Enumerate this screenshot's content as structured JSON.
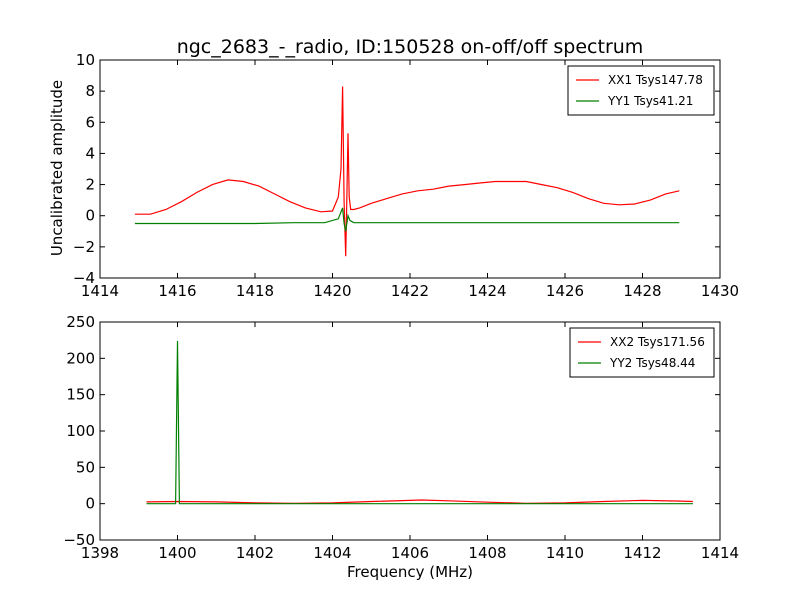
{
  "title": "ngc_2683_-_radio, ID:150528 on-off/off spectrum",
  "chart_data": [
    {
      "type": "line",
      "xlabel": "",
      "ylabel": "Uncalibrated amplitude",
      "xlim": [
        1414,
        1430
      ],
      "ylim": [
        -4,
        10
      ],
      "xticks": [
        "1414",
        "1416",
        "1418",
        "1420",
        "1422",
        "1424",
        "1426",
        "1428",
        "1430"
      ],
      "yticks": [
        "−4",
        "−2",
        "0",
        "2",
        "4",
        "6",
        "8",
        "10"
      ],
      "legend_position": "top-right",
      "series": [
        {
          "name": "XX1 Tsys147.78",
          "color": "#ff0000",
          "x": [
            1414.9,
            1415.3,
            1415.7,
            1416.1,
            1416.5,
            1416.9,
            1417.3,
            1417.7,
            1418.1,
            1418.5,
            1418.9,
            1419.3,
            1419.7,
            1420.0,
            1420.15,
            1420.22,
            1420.26,
            1420.3,
            1420.34,
            1420.37,
            1420.4,
            1420.43,
            1420.47,
            1420.55,
            1420.7,
            1421.0,
            1421.4,
            1421.8,
            1422.2,
            1422.6,
            1423.0,
            1423.4,
            1423.8,
            1424.2,
            1424.6,
            1425.0,
            1425.4,
            1425.8,
            1426.2,
            1426.6,
            1427.0,
            1427.4,
            1427.8,
            1428.2,
            1428.6,
            1428.95
          ],
          "values": [
            0.1,
            0.1,
            0.4,
            0.9,
            1.5,
            2.0,
            2.3,
            2.2,
            1.9,
            1.4,
            0.9,
            0.5,
            0.25,
            0.3,
            1.2,
            3.0,
            8.3,
            0.9,
            -2.6,
            1.0,
            5.3,
            1.2,
            0.4,
            0.4,
            0.5,
            0.8,
            1.1,
            1.4,
            1.6,
            1.7,
            1.9,
            2.0,
            2.1,
            2.2,
            2.2,
            2.2,
            2.0,
            1.8,
            1.5,
            1.1,
            0.8,
            0.7,
            0.75,
            1.0,
            1.4,
            1.6
          ]
        },
        {
          "name": "YY1 Tsys41.21",
          "color": "#008000",
          "x": [
            1414.9,
            1416.0,
            1417.0,
            1418.0,
            1419.0,
            1419.8,
            1420.15,
            1420.26,
            1420.3,
            1420.34,
            1420.4,
            1420.45,
            1420.55,
            1421.0,
            1422.0,
            1423.0,
            1424.0,
            1425.0,
            1426.0,
            1427.0,
            1428.0,
            1428.95
          ],
          "values": [
            -0.5,
            -0.5,
            -0.5,
            -0.5,
            -0.45,
            -0.45,
            -0.2,
            0.5,
            -0.5,
            -1.0,
            0.0,
            -0.3,
            -0.45,
            -0.45,
            -0.45,
            -0.45,
            -0.45,
            -0.45,
            -0.45,
            -0.45,
            -0.45,
            -0.45
          ]
        }
      ]
    },
    {
      "type": "line",
      "xlabel": "Frequency (MHz)",
      "ylabel": "",
      "xlim": [
        1398,
        1414
      ],
      "ylim": [
        -50,
        250
      ],
      "xticks": [
        "1398",
        "1400",
        "1402",
        "1404",
        "1406",
        "1408",
        "1410",
        "1412",
        "1414"
      ],
      "yticks": [
        "−50",
        "0",
        "50",
        "100",
        "150",
        "200",
        "250"
      ],
      "legend_position": "top-right",
      "series": [
        {
          "name": "XX2 Tsys171.56",
          "color": "#ff0000",
          "x": [
            1399.2,
            1400.0,
            1401.0,
            1402.0,
            1403.0,
            1404.0,
            1405.0,
            1406.0,
            1406.3,
            1407.0,
            1408.0,
            1409.0,
            1410.0,
            1411.0,
            1412.0,
            1413.0,
            1413.3
          ],
          "values": [
            2.5,
            3.0,
            2.5,
            1.0,
            0.5,
            1.0,
            3.0,
            4.5,
            5.0,
            4.0,
            2.0,
            0.5,
            1.0,
            3.0,
            4.5,
            3.5,
            3.0
          ],
          "values_note": ""
        },
        {
          "name": "YY2 Tsys48.44",
          "color": "#008000",
          "x": [
            1399.2,
            1399.95,
            1400.0,
            1400.05,
            1401.0,
            1402.0,
            1403.0,
            1404.0,
            1405.0,
            1406.0,
            1407.0,
            1408.0,
            1409.0,
            1410.0,
            1411.0,
            1412.0,
            1413.3
          ],
          "values": [
            0.0,
            0.0,
            224,
            0.0,
            0.0,
            0.0,
            0.0,
            0.0,
            0.0,
            0.0,
            0.0,
            0.0,
            0.0,
            0.0,
            0.0,
            0.0,
            0.0
          ]
        }
      ]
    }
  ]
}
